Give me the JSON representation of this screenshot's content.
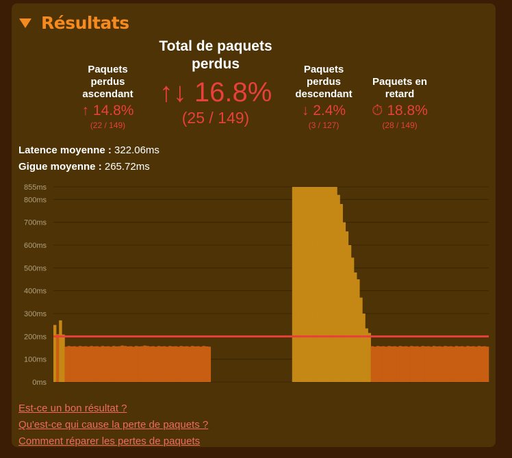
{
  "title": "Résultats",
  "stats": {
    "upload": {
      "label": "Paquets perdus ascendant",
      "icon": "↑",
      "value": "14.8%",
      "sub": "(22 / 149)"
    },
    "total": {
      "label": "Total de paquets perdus",
      "icon": "↑↓",
      "value": "16.8%",
      "sub": "(25 / 149)"
    },
    "download": {
      "label": "Paquets perdus descendant",
      "icon": "↓",
      "value": "2.4%",
      "sub": "(3 / 127)"
    },
    "late": {
      "label": "Paquets en retard",
      "icon": "⏱",
      "value": "18.8%",
      "sub": "(28 / 149)"
    }
  },
  "metrics": {
    "latency_label": "Latence moyenne :",
    "latency_value": "322.06ms",
    "jitter_label": "Gigue moyenne :",
    "jitter_value": "265.72ms"
  },
  "colors": {
    "accent": "#f58a1f",
    "loss": "#e8403a",
    "bar_normal": "#c85e12",
    "bar_lost": "#c68815",
    "avg_line": "#e8403a"
  },
  "chart_data": {
    "type": "bar",
    "y_unit": "ms",
    "ylim": [
      0,
      855
    ],
    "y_ticks": [
      0,
      100,
      200,
      300,
      400,
      500,
      600,
      700,
      800,
      855
    ],
    "y_tick_labels": [
      "0ms",
      "100ms",
      "200ms",
      "300ms",
      "400ms",
      "500ms",
      "600ms",
      "700ms",
      "800ms",
      "855ms"
    ],
    "grid": true,
    "average_line": 200,
    "series": [
      {
        "values": [
          250,
          210,
          270,
          208,
          155,
          158,
          156,
          157,
          155,
          158,
          156,
          157,
          155,
          158,
          156,
          157,
          155,
          158,
          156,
          157,
          155,
          158,
          156,
          157,
          160,
          158,
          156,
          157,
          155,
          158,
          156,
          157,
          160,
          158,
          156,
          157,
          155,
          158,
          156,
          157,
          155,
          158,
          156,
          157,
          155,
          158,
          156,
          157,
          155,
          158,
          156,
          157,
          155,
          158,
          156,
          155,
          0,
          0,
          0,
          0,
          0,
          0,
          0,
          0,
          0,
          0,
          0,
          0,
          0,
          0,
          0,
          0,
          0,
          0,
          0,
          0,
          0,
          0,
          0,
          0,
          0,
          0,
          0,
          0,
          0,
          855,
          855,
          855,
          855,
          855,
          855,
          855,
          855,
          855,
          855,
          855,
          855,
          855,
          855,
          855,
          855,
          820,
          780,
          700,
          660,
          600,
          545,
          480,
          450,
          370,
          300,
          235,
          215,
          157,
          155,
          158,
          156,
          157,
          155,
          158,
          156,
          157,
          155,
          158,
          156,
          157,
          155,
          158,
          156,
          157,
          155,
          158,
          156,
          157,
          155,
          158,
          156,
          157,
          155,
          158,
          156,
          157,
          155,
          158,
          156,
          157,
          155,
          158,
          156,
          157,
          155,
          158,
          156,
          157,
          155
        ],
        "status": [
          "L",
          "N",
          "L",
          "L",
          "N",
          "N",
          "N",
          "N",
          "N",
          "N",
          "N",
          "N",
          "N",
          "N",
          "N",
          "N",
          "N",
          "N",
          "N",
          "N",
          "N",
          "N",
          "N",
          "N",
          "N",
          "N",
          "N",
          "N",
          "N",
          "N",
          "N",
          "N",
          "N",
          "N",
          "N",
          "N",
          "N",
          "N",
          "N",
          "N",
          "N",
          "N",
          "N",
          "N",
          "N",
          "N",
          "N",
          "N",
          "N",
          "N",
          "N",
          "N",
          "N",
          "N",
          "N",
          "N",
          "X",
          "X",
          "X",
          "X",
          "X",
          "X",
          "X",
          "X",
          "X",
          "X",
          "X",
          "X",
          "X",
          "X",
          "X",
          "X",
          "X",
          "X",
          "X",
          "X",
          "X",
          "X",
          "X",
          "X",
          "X",
          "X",
          "X",
          "X",
          "X",
          "L",
          "L",
          "L",
          "L",
          "L",
          "L",
          "L",
          "L",
          "L",
          "L",
          "L",
          "L",
          "L",
          "L",
          "L",
          "L",
          "L",
          "L",
          "L",
          "L",
          "L",
          "L",
          "L",
          "L",
          "L",
          "L",
          "L",
          "L",
          "N",
          "N",
          "N",
          "N",
          "N",
          "N",
          "N",
          "N",
          "N",
          "N",
          "N",
          "N",
          "N",
          "N",
          "N",
          "N",
          "N",
          "N",
          "N",
          "N",
          "N",
          "N",
          "N",
          "N",
          "N",
          "N",
          "N",
          "N",
          "N",
          "N",
          "N",
          "N",
          "N",
          "N",
          "N",
          "N",
          "N",
          "N",
          "N",
          "N",
          "N",
          "N",
          "N"
        ]
      }
    ]
  },
  "links": [
    "Est-ce un bon résultat ?",
    "Qu'est-ce qui cause la perte de paquets ?",
    "Comment réparer les pertes de paquets"
  ]
}
